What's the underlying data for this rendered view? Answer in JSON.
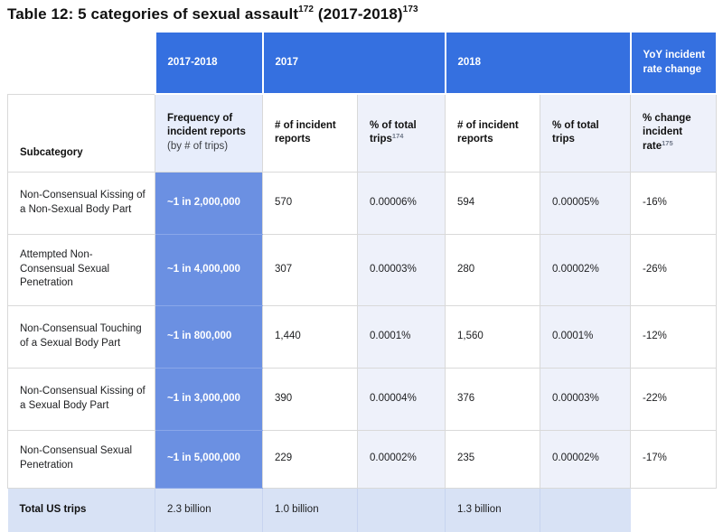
{
  "title": {
    "text": "Table 12: 5 categories of sexual assault",
    "footnote1": "172",
    "text2": " (2017-2018)",
    "footnote2": "173"
  },
  "colors": {
    "header_blue": "#3570e0",
    "freq_blue": "#6b90e2",
    "freq_header_bg": "#e7edfb",
    "pct_bg": "#eef1fa",
    "footer_bg": "#d8e2f5",
    "border": "#d9d9d9",
    "text": "#1d1e20",
    "sup_gray": "#6f7888"
  },
  "table": {
    "col_groups": {
      "combined": "2017-2018",
      "y2017": "2017",
      "y2018": "2018",
      "yoy": "YoY incident rate change"
    },
    "headers": {
      "subcategory": "Subcategory",
      "frequency": "Frequency of incident reports",
      "frequency_note": "(by # of trips)",
      "reports_2017": "# of incident reports",
      "pct_2017": "% of total trips",
      "pct_2017_sup": "174",
      "reports_2018": "# of incident reports",
      "pct_2018": "% of total trips",
      "yoy": "% change incident rate",
      "yoy_sup": "175"
    },
    "rows": [
      {
        "subcategory": "Non-Consensual Kissing of a Non-Sexual Body Part",
        "frequency": "~1 in 2,000,000",
        "reports_2017": "570",
        "pct_2017": "0.00006%",
        "reports_2018": "594",
        "pct_2018": "0.00005%",
        "yoy": "-16%"
      },
      {
        "subcategory": "Attempted Non-Consensual Sexual Penetration",
        "frequency": "~1 in 4,000,000",
        "reports_2017": "307",
        "pct_2017": "0.00003%",
        "reports_2018": "280",
        "pct_2018": "0.00002%",
        "yoy": "-26%"
      },
      {
        "subcategory": "Non-Consensual Touching of a Sexual Body Part",
        "frequency": "~1 in 800,000",
        "reports_2017": "1,440",
        "pct_2017": "0.0001%",
        "reports_2018": "1,560",
        "pct_2018": "0.0001%",
        "yoy": "-12%"
      },
      {
        "subcategory": "Non-Consensual Kissing of a Sexual Body Part",
        "frequency": "~1 in 3,000,000",
        "reports_2017": "390",
        "pct_2017": "0.00004%",
        "reports_2018": "376",
        "pct_2018": "0.00003%",
        "yoy": "-22%"
      },
      {
        "subcategory": "Non-Consensual Sexual Penetration",
        "frequency": "~1 in 5,000,000",
        "reports_2017": "229",
        "pct_2017": "0.00002%",
        "reports_2018": "235",
        "pct_2018": "0.00002%",
        "yoy": "-17%"
      }
    ],
    "footer": {
      "label": "Total US trips",
      "total_combined": "2.3 billion",
      "total_2017": "1.0 billion",
      "total_2018": "1.3 billion"
    }
  }
}
